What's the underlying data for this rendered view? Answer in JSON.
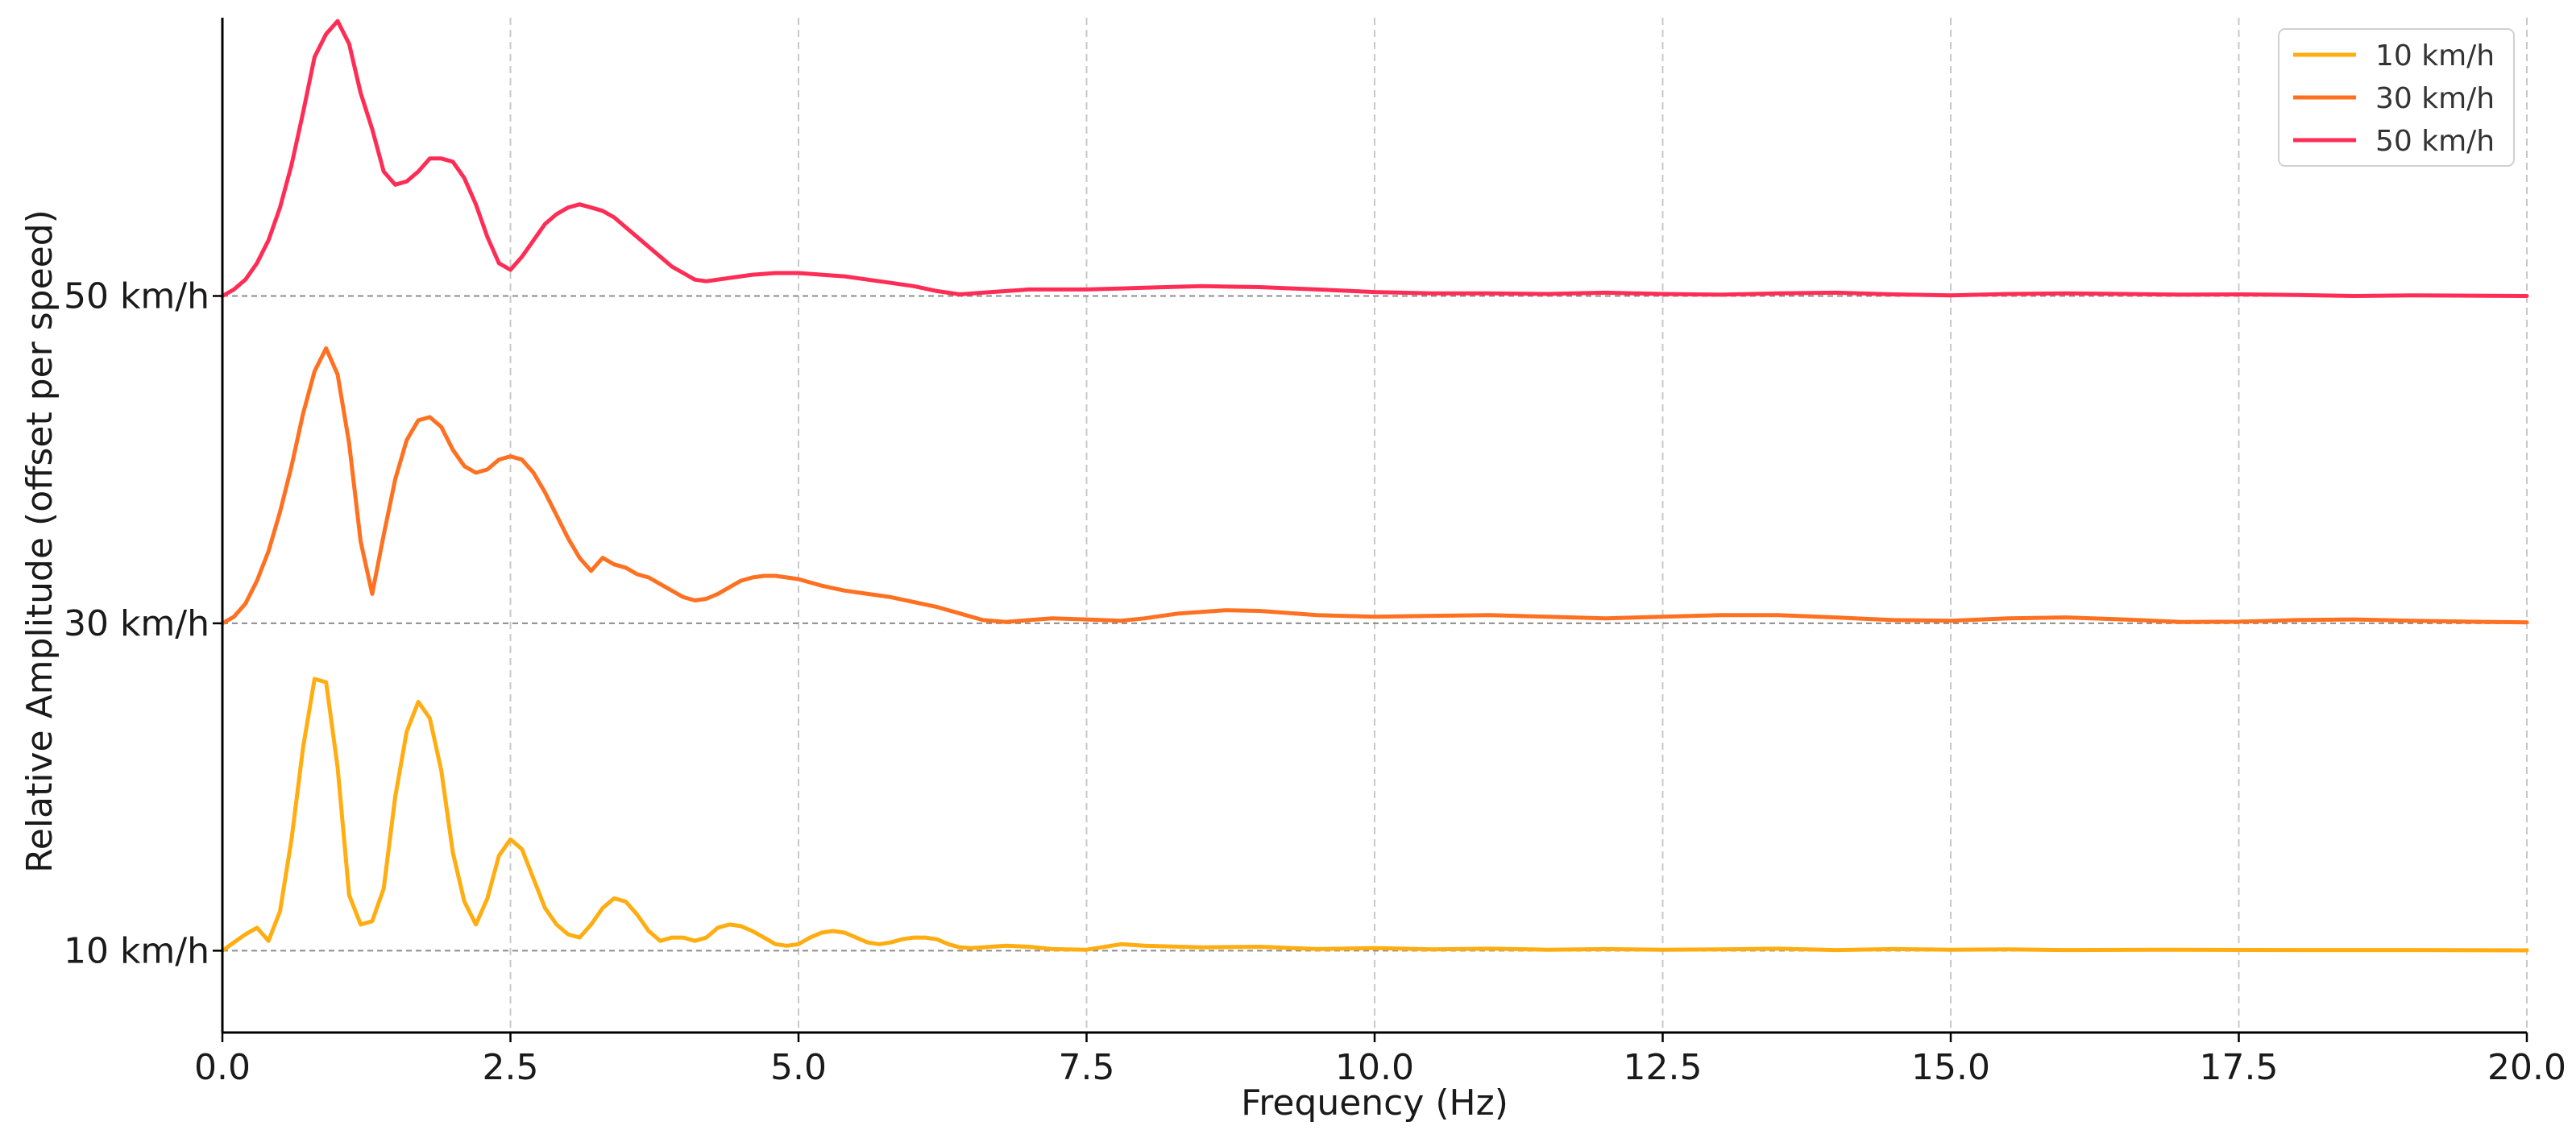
{
  "chart_data": {
    "type": "line",
    "title": "",
    "xlabel": "Frequency (Hz)",
    "ylabel": "Relative Amplitude (offset per speed)",
    "xlim": [
      0,
      20
    ],
    "ylim": [
      -0.25,
      2.85
    ],
    "x_ticks": [
      "0.0",
      "2.5",
      "5.0",
      "7.5",
      "10.0",
      "12.5",
      "15.0",
      "17.5",
      "20.0"
    ],
    "y_ticks": [
      {
        "label": "10 km/h",
        "value": 0
      },
      {
        "label": "30 km/h",
        "value": 1
      },
      {
        "label": "50 km/h",
        "value": 2
      }
    ],
    "grid": {
      "vertical": true,
      "horizontal_baselines": true
    },
    "legend_position": "top-right",
    "series": [
      {
        "name": "10 km/h",
        "color": "#FFAD10",
        "baseline": 0,
        "points": [
          [
            0,
            0.0
          ],
          [
            0.1,
            0.025
          ],
          [
            0.2,
            0.05
          ],
          [
            0.3,
            0.07
          ],
          [
            0.4,
            0.03
          ],
          [
            0.5,
            0.12
          ],
          [
            0.6,
            0.34
          ],
          [
            0.7,
            0.62
          ],
          [
            0.8,
            0.83
          ],
          [
            0.9,
            0.82
          ],
          [
            1.0,
            0.56
          ],
          [
            1.1,
            0.17
          ],
          [
            1.2,
            0.08
          ],
          [
            1.3,
            0.09
          ],
          [
            1.4,
            0.19
          ],
          [
            1.5,
            0.47
          ],
          [
            1.6,
            0.67
          ],
          [
            1.7,
            0.76
          ],
          [
            1.8,
            0.71
          ],
          [
            1.9,
            0.55
          ],
          [
            2.0,
            0.3
          ],
          [
            2.1,
            0.15
          ],
          [
            2.2,
            0.08
          ],
          [
            2.3,
            0.16
          ],
          [
            2.4,
            0.29
          ],
          [
            2.5,
            0.34
          ],
          [
            2.6,
            0.31
          ],
          [
            2.7,
            0.22
          ],
          [
            2.8,
            0.13
          ],
          [
            2.9,
            0.08
          ],
          [
            3.0,
            0.05
          ],
          [
            3.1,
            0.04
          ],
          [
            3.2,
            0.08
          ],
          [
            3.3,
            0.13
          ],
          [
            3.4,
            0.16
          ],
          [
            3.5,
            0.15
          ],
          [
            3.6,
            0.11
          ],
          [
            3.7,
            0.06
          ],
          [
            3.8,
            0.03
          ],
          [
            3.9,
            0.04
          ],
          [
            4.0,
            0.04
          ],
          [
            4.1,
            0.03
          ],
          [
            4.2,
            0.04
          ],
          [
            4.3,
            0.07
          ],
          [
            4.4,
            0.08
          ],
          [
            4.5,
            0.075
          ],
          [
            4.6,
            0.06
          ],
          [
            4.7,
            0.04
          ],
          [
            4.8,
            0.02
          ],
          [
            4.9,
            0.015
          ],
          [
            5.0,
            0.02
          ],
          [
            5.1,
            0.04
          ],
          [
            5.2,
            0.055
          ],
          [
            5.3,
            0.06
          ],
          [
            5.4,
            0.055
          ],
          [
            5.5,
            0.04
          ],
          [
            5.6,
            0.025
          ],
          [
            5.7,
            0.02
          ],
          [
            5.8,
            0.025
          ],
          [
            5.9,
            0.035
          ],
          [
            6.0,
            0.04
          ],
          [
            6.1,
            0.04
          ],
          [
            6.2,
            0.035
          ],
          [
            6.3,
            0.02
          ],
          [
            6.4,
            0.01
          ],
          [
            6.5,
            0.008
          ],
          [
            6.6,
            0.01
          ],
          [
            6.8,
            0.015
          ],
          [
            7.0,
            0.012
          ],
          [
            7.2,
            0.005
          ],
          [
            7.5,
            0.003
          ],
          [
            7.8,
            0.02
          ],
          [
            8.0,
            0.015
          ],
          [
            8.5,
            0.01
          ],
          [
            9.0,
            0.012
          ],
          [
            9.5,
            0.005
          ],
          [
            10.0,
            0.008
          ],
          [
            10.5,
            0.004
          ],
          [
            11.0,
            0.006
          ],
          [
            11.5,
            0.003
          ],
          [
            12.0,
            0.005
          ],
          [
            12.5,
            0.003
          ],
          [
            13.0,
            0.004
          ],
          [
            13.5,
            0.006
          ],
          [
            14.0,
            0.002
          ],
          [
            14.5,
            0.005
          ],
          [
            15.0,
            0.003
          ],
          [
            15.5,
            0.004
          ],
          [
            16.0,
            0.002
          ],
          [
            17.0,
            0.003
          ],
          [
            18.0,
            0.002
          ],
          [
            19.0,
            0.002
          ],
          [
            20.0,
            0.001
          ]
        ]
      },
      {
        "name": "30 km/h",
        "color": "#FF7020",
        "baseline": 1,
        "points": [
          [
            0,
            0.0
          ],
          [
            0.1,
            0.02
          ],
          [
            0.2,
            0.06
          ],
          [
            0.3,
            0.13
          ],
          [
            0.4,
            0.22
          ],
          [
            0.5,
            0.34
          ],
          [
            0.6,
            0.48
          ],
          [
            0.7,
            0.64
          ],
          [
            0.8,
            0.77
          ],
          [
            0.9,
            0.84
          ],
          [
            1.0,
            0.76
          ],
          [
            1.1,
            0.55
          ],
          [
            1.2,
            0.25
          ],
          [
            1.3,
            0.09
          ],
          [
            1.4,
            0.27
          ],
          [
            1.5,
            0.44
          ],
          [
            1.6,
            0.56
          ],
          [
            1.7,
            0.62
          ],
          [
            1.8,
            0.63
          ],
          [
            1.9,
            0.6
          ],
          [
            2.0,
            0.53
          ],
          [
            2.1,
            0.48
          ],
          [
            2.2,
            0.46
          ],
          [
            2.3,
            0.47
          ],
          [
            2.4,
            0.5
          ],
          [
            2.5,
            0.51
          ],
          [
            2.6,
            0.5
          ],
          [
            2.7,
            0.46
          ],
          [
            2.8,
            0.4
          ],
          [
            2.9,
            0.33
          ],
          [
            3.0,
            0.26
          ],
          [
            3.1,
            0.2
          ],
          [
            3.2,
            0.16
          ],
          [
            3.3,
            0.2
          ],
          [
            3.4,
            0.18
          ],
          [
            3.5,
            0.17
          ],
          [
            3.6,
            0.15
          ],
          [
            3.7,
            0.14
          ],
          [
            3.8,
            0.12
          ],
          [
            3.9,
            0.1
          ],
          [
            4.0,
            0.08
          ],
          [
            4.1,
            0.07
          ],
          [
            4.2,
            0.075
          ],
          [
            4.3,
            0.09
          ],
          [
            4.4,
            0.11
          ],
          [
            4.5,
            0.13
          ],
          [
            4.6,
            0.14
          ],
          [
            4.7,
            0.145
          ],
          [
            4.8,
            0.145
          ],
          [
            4.9,
            0.14
          ],
          [
            5.0,
            0.135
          ],
          [
            5.2,
            0.115
          ],
          [
            5.4,
            0.1
          ],
          [
            5.6,
            0.09
          ],
          [
            5.8,
            0.08
          ],
          [
            6.0,
            0.065
          ],
          [
            6.2,
            0.05
          ],
          [
            6.4,
            0.03
          ],
          [
            6.6,
            0.01
          ],
          [
            6.8,
            0.004
          ],
          [
            7.0,
            0.01
          ],
          [
            7.2,
            0.015
          ],
          [
            7.5,
            0.012
          ],
          [
            7.8,
            0.008
          ],
          [
            8.0,
            0.015
          ],
          [
            8.3,
            0.03
          ],
          [
            8.7,
            0.04
          ],
          [
            9.0,
            0.038
          ],
          [
            9.5,
            0.025
          ],
          [
            10.0,
            0.02
          ],
          [
            10.5,
            0.023
          ],
          [
            11.0,
            0.025
          ],
          [
            11.5,
            0.02
          ],
          [
            12.0,
            0.015
          ],
          [
            12.5,
            0.02
          ],
          [
            13.0,
            0.025
          ],
          [
            13.5,
            0.025
          ],
          [
            14.0,
            0.018
          ],
          [
            14.5,
            0.01
          ],
          [
            15.0,
            0.008
          ],
          [
            15.5,
            0.015
          ],
          [
            16.0,
            0.018
          ],
          [
            16.5,
            0.012
          ],
          [
            17.0,
            0.004
          ],
          [
            17.5,
            0.005
          ],
          [
            18.0,
            0.01
          ],
          [
            18.5,
            0.012
          ],
          [
            19.0,
            0.008
          ],
          [
            19.5,
            0.005
          ],
          [
            20.0,
            0.003
          ]
        ]
      },
      {
        "name": "50 km/h",
        "color": "#FF2D55",
        "baseline": 2,
        "points": [
          [
            0,
            0.0
          ],
          [
            0.1,
            0.02
          ],
          [
            0.2,
            0.05
          ],
          [
            0.3,
            0.1
          ],
          [
            0.4,
            0.17
          ],
          [
            0.5,
            0.27
          ],
          [
            0.6,
            0.4
          ],
          [
            0.7,
            0.56
          ],
          [
            0.8,
            0.73
          ],
          [
            0.9,
            0.8
          ],
          [
            1.0,
            0.84
          ],
          [
            1.1,
            0.77
          ],
          [
            1.2,
            0.62
          ],
          [
            1.3,
            0.51
          ],
          [
            1.4,
            0.38
          ],
          [
            1.5,
            0.34
          ],
          [
            1.6,
            0.35
          ],
          [
            1.7,
            0.38
          ],
          [
            1.8,
            0.42
          ],
          [
            1.9,
            0.42
          ],
          [
            2.0,
            0.41
          ],
          [
            2.1,
            0.36
          ],
          [
            2.2,
            0.28
          ],
          [
            2.3,
            0.18
          ],
          [
            2.4,
            0.1
          ],
          [
            2.5,
            0.08
          ],
          [
            2.6,
            0.12
          ],
          [
            2.7,
            0.17
          ],
          [
            2.8,
            0.22
          ],
          [
            2.9,
            0.25
          ],
          [
            3.0,
            0.27
          ],
          [
            3.1,
            0.28
          ],
          [
            3.2,
            0.27
          ],
          [
            3.3,
            0.26
          ],
          [
            3.4,
            0.24
          ],
          [
            3.5,
            0.21
          ],
          [
            3.6,
            0.18
          ],
          [
            3.7,
            0.15
          ],
          [
            3.8,
            0.12
          ],
          [
            3.9,
            0.09
          ],
          [
            4.0,
            0.07
          ],
          [
            4.1,
            0.05
          ],
          [
            4.2,
            0.045
          ],
          [
            4.3,
            0.05
          ],
          [
            4.4,
            0.055
          ],
          [
            4.5,
            0.06
          ],
          [
            4.6,
            0.065
          ],
          [
            4.8,
            0.07
          ],
          [
            5.0,
            0.07
          ],
          [
            5.2,
            0.065
          ],
          [
            5.4,
            0.06
          ],
          [
            5.6,
            0.05
          ],
          [
            5.8,
            0.04
          ],
          [
            6.0,
            0.03
          ],
          [
            6.2,
            0.015
          ],
          [
            6.4,
            0.005
          ],
          [
            6.6,
            0.01
          ],
          [
            6.8,
            0.015
          ],
          [
            7.0,
            0.02
          ],
          [
            7.5,
            0.02
          ],
          [
            8.0,
            0.025
          ],
          [
            8.5,
            0.03
          ],
          [
            9.0,
            0.027
          ],
          [
            9.5,
            0.02
          ],
          [
            10.0,
            0.012
          ],
          [
            10.5,
            0.008
          ],
          [
            11.0,
            0.008
          ],
          [
            11.5,
            0.006
          ],
          [
            12.0,
            0.01
          ],
          [
            12.5,
            0.006
          ],
          [
            13.0,
            0.004
          ],
          [
            13.5,
            0.008
          ],
          [
            14.0,
            0.01
          ],
          [
            14.5,
            0.005
          ],
          [
            15.0,
            0.002
          ],
          [
            15.5,
            0.006
          ],
          [
            16.0,
            0.008
          ],
          [
            16.5,
            0.006
          ],
          [
            17.0,
            0.004
          ],
          [
            17.5,
            0.005
          ],
          [
            18.0,
            0.003
          ],
          [
            18.5,
            0.0
          ],
          [
            19.0,
            0.002
          ],
          [
            19.5,
            0.001
          ],
          [
            20.0,
            0.0
          ]
        ]
      }
    ]
  }
}
